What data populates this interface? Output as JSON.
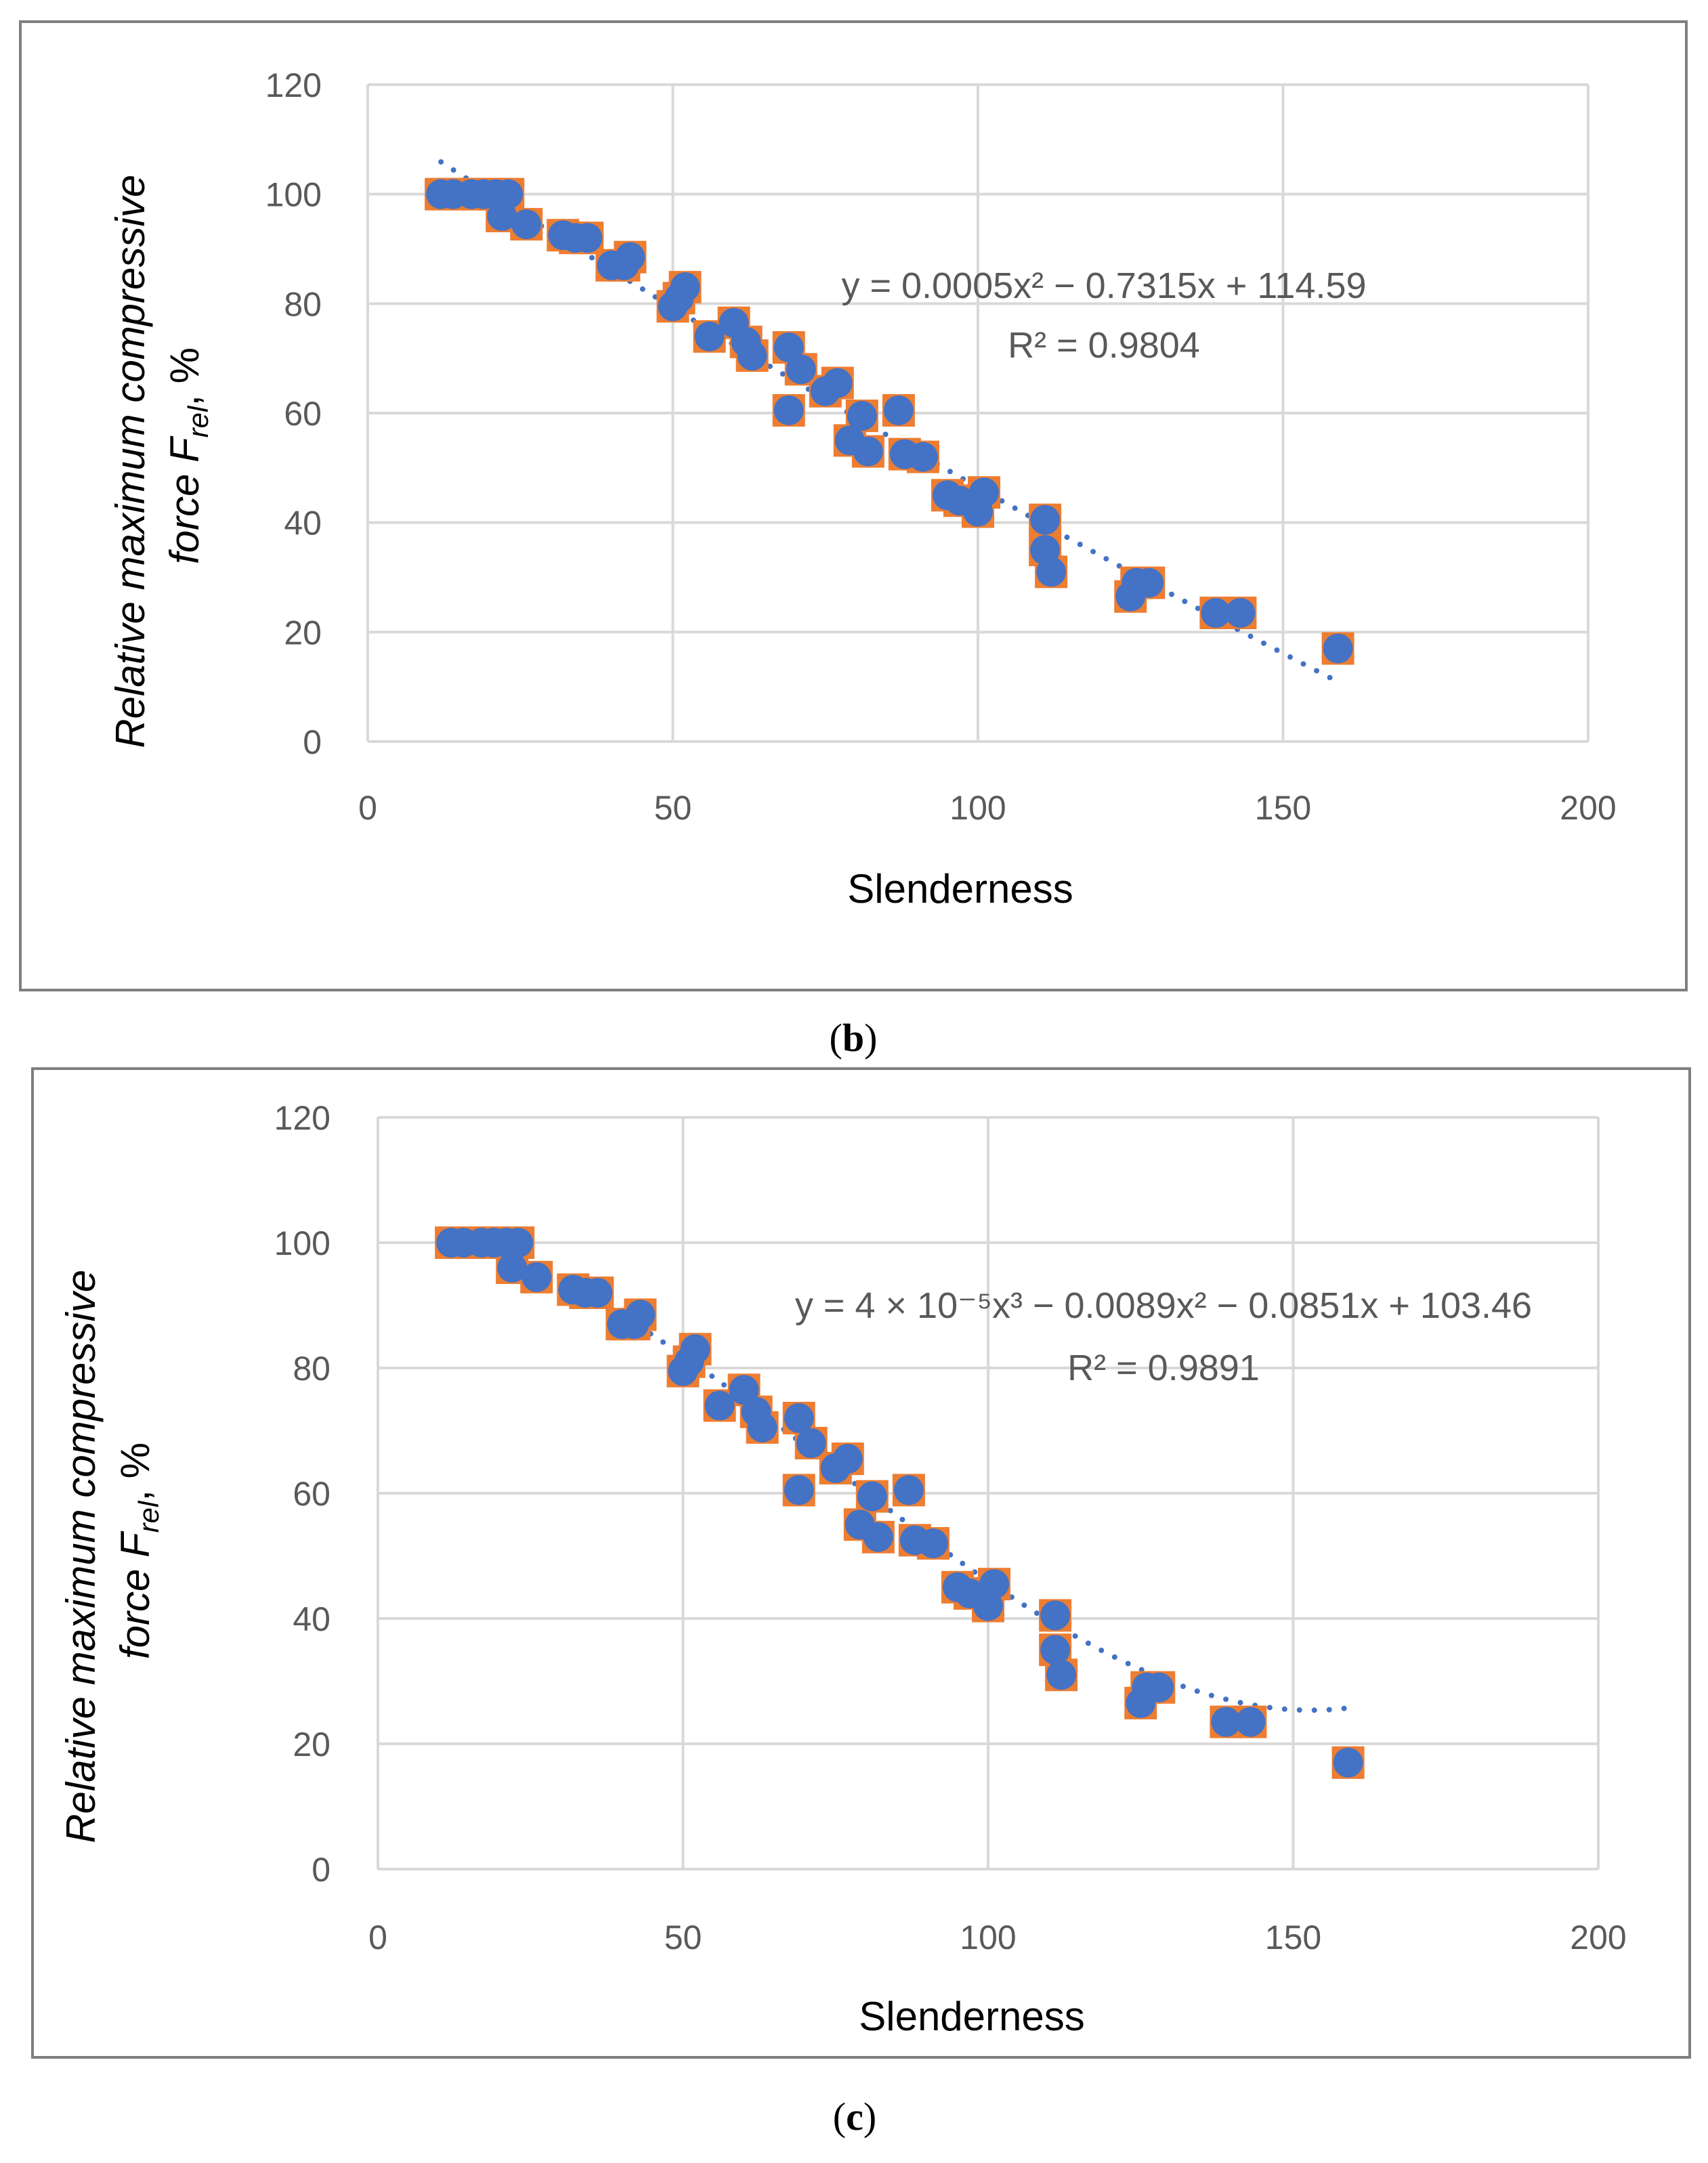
{
  "chart_data": [
    {
      "type": "scatter",
      "panel_label": "b",
      "xlabel": "Slenderness",
      "ylabel_line1": "Relative maximum compressive",
      "ylabel_line2_prefix": "force  F",
      "ylabel_subscript": "rel",
      "ylabel_suffix": ", %",
      "xlim": [
        0,
        200
      ],
      "ylim": [
        0,
        120
      ],
      "xticks": [
        "0",
        "50",
        "100",
        "150",
        "200"
      ],
      "yticks": [
        "0",
        "20",
        "40",
        "60",
        "80",
        "100",
        "120"
      ],
      "grid": true,
      "trendline": {
        "kind": "polynomial-2",
        "equation": "y = 0.0005x² − 0.7315x + 114.59",
        "r2_label": "R² = 0.9804",
        "coefficients": [
          0.0005,
          -0.7315,
          114.59
        ],
        "x_range": [
          12,
          159
        ]
      },
      "series": [
        {
          "points": [
            [
              12,
              100
            ],
            [
              14,
              100
            ],
            [
              17,
              100
            ],
            [
              19,
              100
            ],
            [
              21,
              100
            ],
            [
              22,
              96
            ],
            [
              23,
              100
            ],
            [
              26,
              94.5
            ],
            [
              32,
              92.5
            ],
            [
              34,
              92
            ],
            [
              36,
              92
            ],
            [
              40,
              87
            ],
            [
              42,
              87
            ],
            [
              43,
              88.5
            ],
            [
              50,
              79.5
            ],
            [
              51,
              81
            ],
            [
              52,
              83
            ],
            [
              56,
              74
            ],
            [
              60,
              76.5
            ],
            [
              62,
              73
            ],
            [
              63,
              70.5
            ],
            [
              69,
              72
            ],
            [
              69,
              60.5
            ],
            [
              71,
              68
            ],
            [
              75,
              64
            ],
            [
              77,
              65.5
            ],
            [
              79,
              55
            ],
            [
              81,
              59.5
            ],
            [
              82,
              53
            ],
            [
              87,
              60.5
            ],
            [
              88,
              52.5
            ],
            [
              91,
              52
            ],
            [
              95,
              45
            ],
            [
              97,
              44
            ],
            [
              100,
              42
            ],
            [
              101,
              45.5
            ],
            [
              111,
              40.5
            ],
            [
              111,
              35
            ],
            [
              112,
              31
            ],
            [
              125,
              26.5
            ],
            [
              126,
              29
            ],
            [
              128,
              29
            ],
            [
              139,
              23.5
            ],
            [
              143,
              23.5
            ],
            [
              159,
              17
            ]
          ]
        }
      ]
    },
    {
      "type": "scatter",
      "panel_label": "c",
      "xlabel": "Slenderness",
      "ylabel_line1": "Relative maximum compressive",
      "ylabel_line2_prefix": "force F",
      "ylabel_subscript": "rel",
      "ylabel_suffix": ", %",
      "xlim": [
        0,
        200
      ],
      "ylim": [
        0,
        120
      ],
      "xticks": [
        "0",
        "50",
        "100",
        "150",
        "200"
      ],
      "yticks": [
        "0",
        "20",
        "40",
        "60",
        "80",
        "100",
        "120"
      ],
      "grid": true,
      "trendline": {
        "kind": "polynomial-3",
        "equation": "y = 4 × 10⁻⁵x³ − 0.0089x² − 0.0851x + 103.46",
        "r2_label": "R² = 0.9891",
        "coefficients": [
          4e-05,
          -0.0089,
          -0.0851,
          103.46
        ],
        "x_range": [
          12,
          159
        ]
      },
      "series": [
        {
          "points": [
            [
              12,
              100
            ],
            [
              14,
              100
            ],
            [
              17,
              100
            ],
            [
              19,
              100
            ],
            [
              21,
              100
            ],
            [
              22,
              96
            ],
            [
              23,
              100
            ],
            [
              26,
              94.5
            ],
            [
              32,
              92.5
            ],
            [
              34,
              92
            ],
            [
              36,
              92
            ],
            [
              40,
              87
            ],
            [
              42,
              87
            ],
            [
              43,
              88.5
            ],
            [
              50,
              79.5
            ],
            [
              51,
              81
            ],
            [
              52,
              83
            ],
            [
              56,
              74
            ],
            [
              60,
              76.5
            ],
            [
              62,
              73
            ],
            [
              63,
              70.5
            ],
            [
              69,
              72
            ],
            [
              69,
              60.5
            ],
            [
              71,
              68
            ],
            [
              75,
              64
            ],
            [
              77,
              65.5
            ],
            [
              79,
              55
            ],
            [
              81,
              59.5
            ],
            [
              82,
              53
            ],
            [
              87,
              60.5
            ],
            [
              88,
              52.5
            ],
            [
              91,
              52
            ],
            [
              95,
              45
            ],
            [
              97,
              44
            ],
            [
              100,
              42
            ],
            [
              101,
              45.5
            ],
            [
              111,
              40.5
            ],
            [
              111,
              35
            ],
            [
              112,
              31
            ],
            [
              125,
              26.5
            ],
            [
              126,
              29
            ],
            [
              128,
              29
            ],
            [
              139,
              23.5
            ],
            [
              143,
              23.5
            ],
            [
              159,
              17
            ]
          ]
        }
      ]
    }
  ],
  "colors": {
    "marker_fill": "#4472C4",
    "marker_square": "#ED7D31",
    "trendline": "#4472C4",
    "gridline": "#D9D9D9",
    "frame": "#7F7F7F",
    "tick_text": "#595959"
  }
}
